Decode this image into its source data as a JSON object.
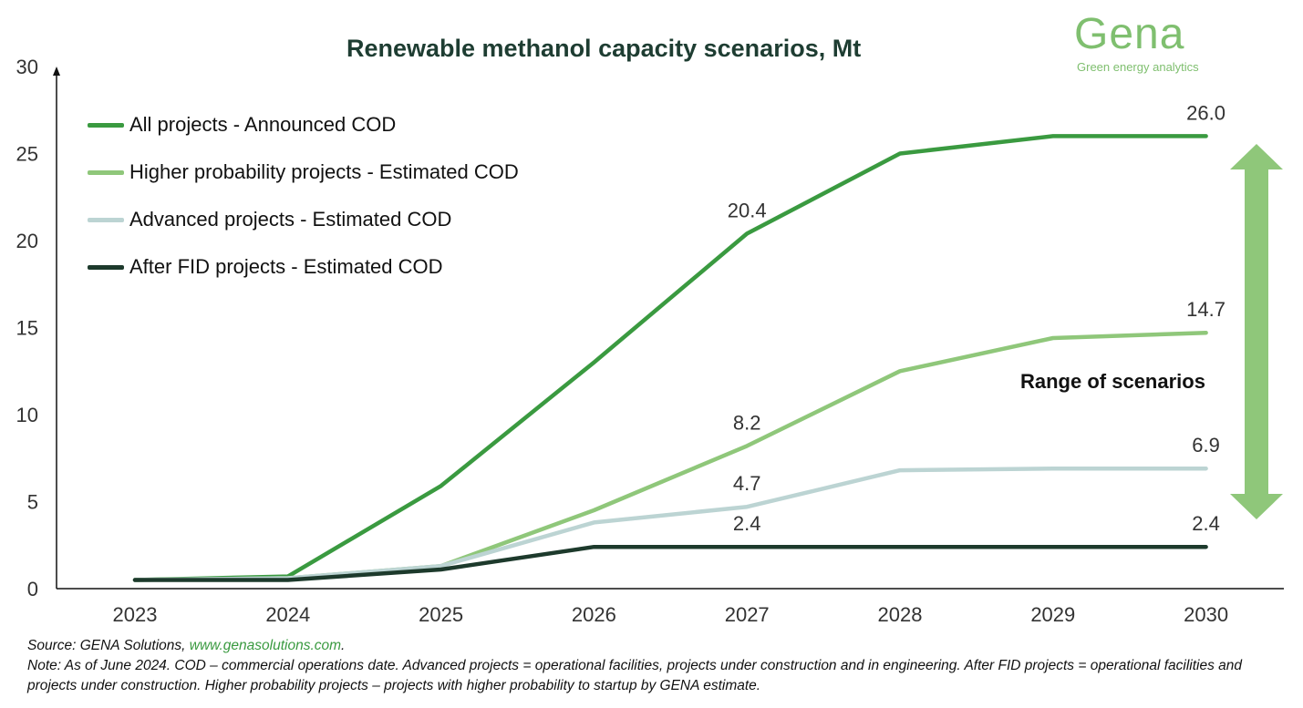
{
  "title": "Renewable methanol capacity scenarios, Mt",
  "logo": {
    "word": "Gena",
    "tagline": "Green energy analytics"
  },
  "range_label": "Range of scenarios",
  "footer": {
    "source_prefix": "Source: GENA Solutions, ",
    "source_link": "www.genasolutions.com",
    "source_suffix": ".",
    "note": "Note: As of June 2024. COD – commercial operations date. Advanced projects = operational facilities, projects under construction and in engineering. After FID projects = operational facilities and projects under construction. Higher probability projects – projects with higher probability to startup by GENA estimate."
  },
  "colors": {
    "all": "#3a9a40",
    "higher": "#8fc77a",
    "advanced": "#bcd4d3",
    "after_fid": "#1d3a2c",
    "arrow": "#8fc77a"
  },
  "chart_data": {
    "type": "line",
    "title": "Renewable methanol capacity scenarios, Mt",
    "x": [
      "2023",
      "2024",
      "2025",
      "2026",
      "2027",
      "2028",
      "2029",
      "2030"
    ],
    "ylim": [
      0,
      30
    ],
    "yticks": [
      "0",
      "5",
      "10",
      "15",
      "20",
      "25",
      "30"
    ],
    "grid": false,
    "legend_position": "top-left",
    "series": [
      {
        "name": "All projects - Announced COD",
        "color": "#3a9a40",
        "values": [
          0.5,
          0.7,
          5.9,
          13.0,
          20.4,
          25.0,
          26.0,
          26.0
        ]
      },
      {
        "name": "Higher probability projects - Estimated COD",
        "color": "#8fc77a",
        "values": [
          0.5,
          0.6,
          1.3,
          4.5,
          8.2,
          12.5,
          14.4,
          14.7
        ]
      },
      {
        "name": "Advanced projects - Estimated COD",
        "color": "#bcd4d3",
        "values": [
          0.5,
          0.6,
          1.3,
          3.8,
          4.7,
          6.8,
          6.9,
          6.9
        ]
      },
      {
        "name": "After FID projects - Estimated COD",
        "color": "#1d3a2c",
        "values": [
          0.5,
          0.5,
          1.1,
          2.4,
          2.4,
          2.4,
          2.4,
          2.4
        ]
      }
    ],
    "data_labels": [
      {
        "series": 0,
        "index": 4,
        "text": "20.4"
      },
      {
        "series": 0,
        "index": 7,
        "text": "26.0"
      },
      {
        "series": 1,
        "index": 4,
        "text": "8.2"
      },
      {
        "series": 1,
        "index": 7,
        "text": "14.7"
      },
      {
        "series": 2,
        "index": 4,
        "text": "4.7"
      },
      {
        "series": 2,
        "index": 7,
        "text": "6.9"
      },
      {
        "series": 3,
        "index": 4,
        "text": "2.4"
      },
      {
        "series": 3,
        "index": 7,
        "text": "2.4"
      }
    ]
  }
}
